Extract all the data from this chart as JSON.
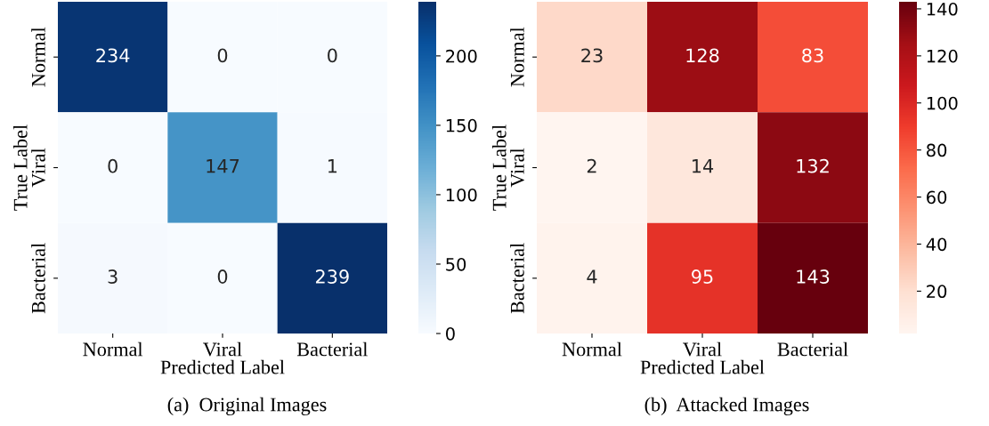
{
  "chart_data": [
    {
      "type": "heatmap",
      "title": "(a)  Original Images",
      "xlabel": "Predicted Label",
      "ylabel": "True Label",
      "categories": [
        "Normal",
        "Viral",
        "Bacterial"
      ],
      "y_categories": [
        "Normal",
        "Viral",
        "Bacterial"
      ],
      "cells": [
        [
          234,
          0,
          0
        ],
        [
          0,
          147,
          1
        ],
        [
          3,
          0,
          239
        ]
      ],
      "data_labels": true,
      "clim": [
        0,
        239
      ],
      "cticks": [
        0,
        50,
        100,
        150,
        200
      ],
      "colors": [
        "#f7fbff",
        "#deebf7",
        "#c6dbef",
        "#9ecae1",
        "#6baed6",
        "#4292c6",
        "#2171b5",
        "#08519c",
        "#08306b"
      ]
    },
    {
      "type": "heatmap",
      "title": "(b)  Attacked Images",
      "xlabel": "Predicted Label",
      "ylabel": "True Label",
      "categories": [
        "Normal",
        "Viral",
        "Bacterial"
      ],
      "y_categories": [
        "Normal",
        "Viral",
        "Bacterial"
      ],
      "cells": [
        [
          23,
          128,
          83
        ],
        [
          2,
          14,
          132
        ],
        [
          4,
          95,
          143
        ]
      ],
      "data_labels": true,
      "clim": [
        2,
        143
      ],
      "cticks": [
        20,
        40,
        60,
        80,
        100,
        120,
        140
      ],
      "colors": [
        "#fff5f0",
        "#fee0d2",
        "#fcbba1",
        "#fc9272",
        "#fb6a4a",
        "#ef3b2c",
        "#cb181d",
        "#a50f15",
        "#67000d"
      ]
    }
  ]
}
